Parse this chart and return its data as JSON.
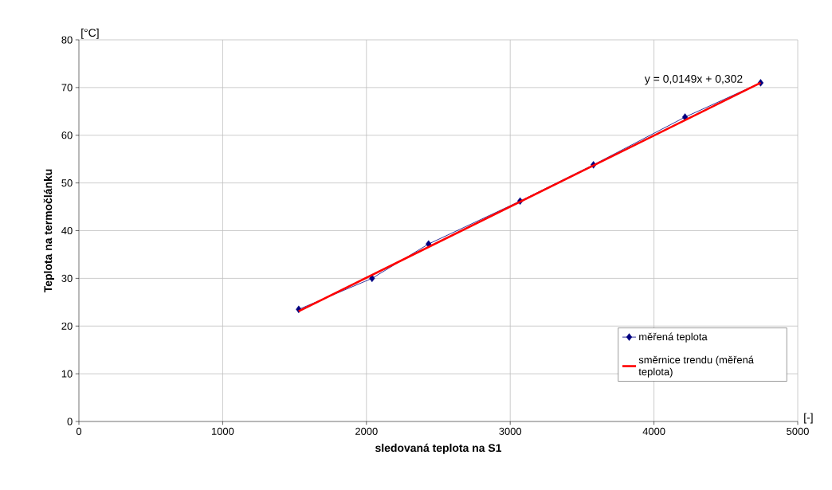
{
  "chart_data": {
    "type": "line",
    "xlabel": "sledovaná teplota na S1",
    "ylabel": "Teplota na termočlánku",
    "annotations": [
      "y = 0,0149x + 0,302",
      "[°C]",
      "[-]"
    ],
    "x": [
      1529,
      2039,
      2432,
      3069,
      3579,
      4216,
      4742
    ],
    "series": [
      {
        "name": "měřená teplota",
        "color": "#000080",
        "marker": "diamond",
        "values": [
          23.5,
          30.0,
          37.2,
          46.2,
          53.8,
          63.8,
          71.0
        ]
      },
      {
        "name": "směrnice trendu (měřená teplota)",
        "color": "#ff0000",
        "marker": "none",
        "x": [
          1529,
          4742
        ],
        "values": [
          23.1,
          71.0
        ]
      }
    ],
    "xlim": [
      0,
      5000
    ],
    "ylim": [
      0,
      80
    ],
    "xticks": [
      0,
      1000,
      2000,
      3000,
      4000,
      5000
    ],
    "yticks": [
      0,
      10,
      20,
      30,
      40,
      50,
      60,
      70,
      80
    ],
    "grid": true,
    "legend": "bottom right"
  }
}
